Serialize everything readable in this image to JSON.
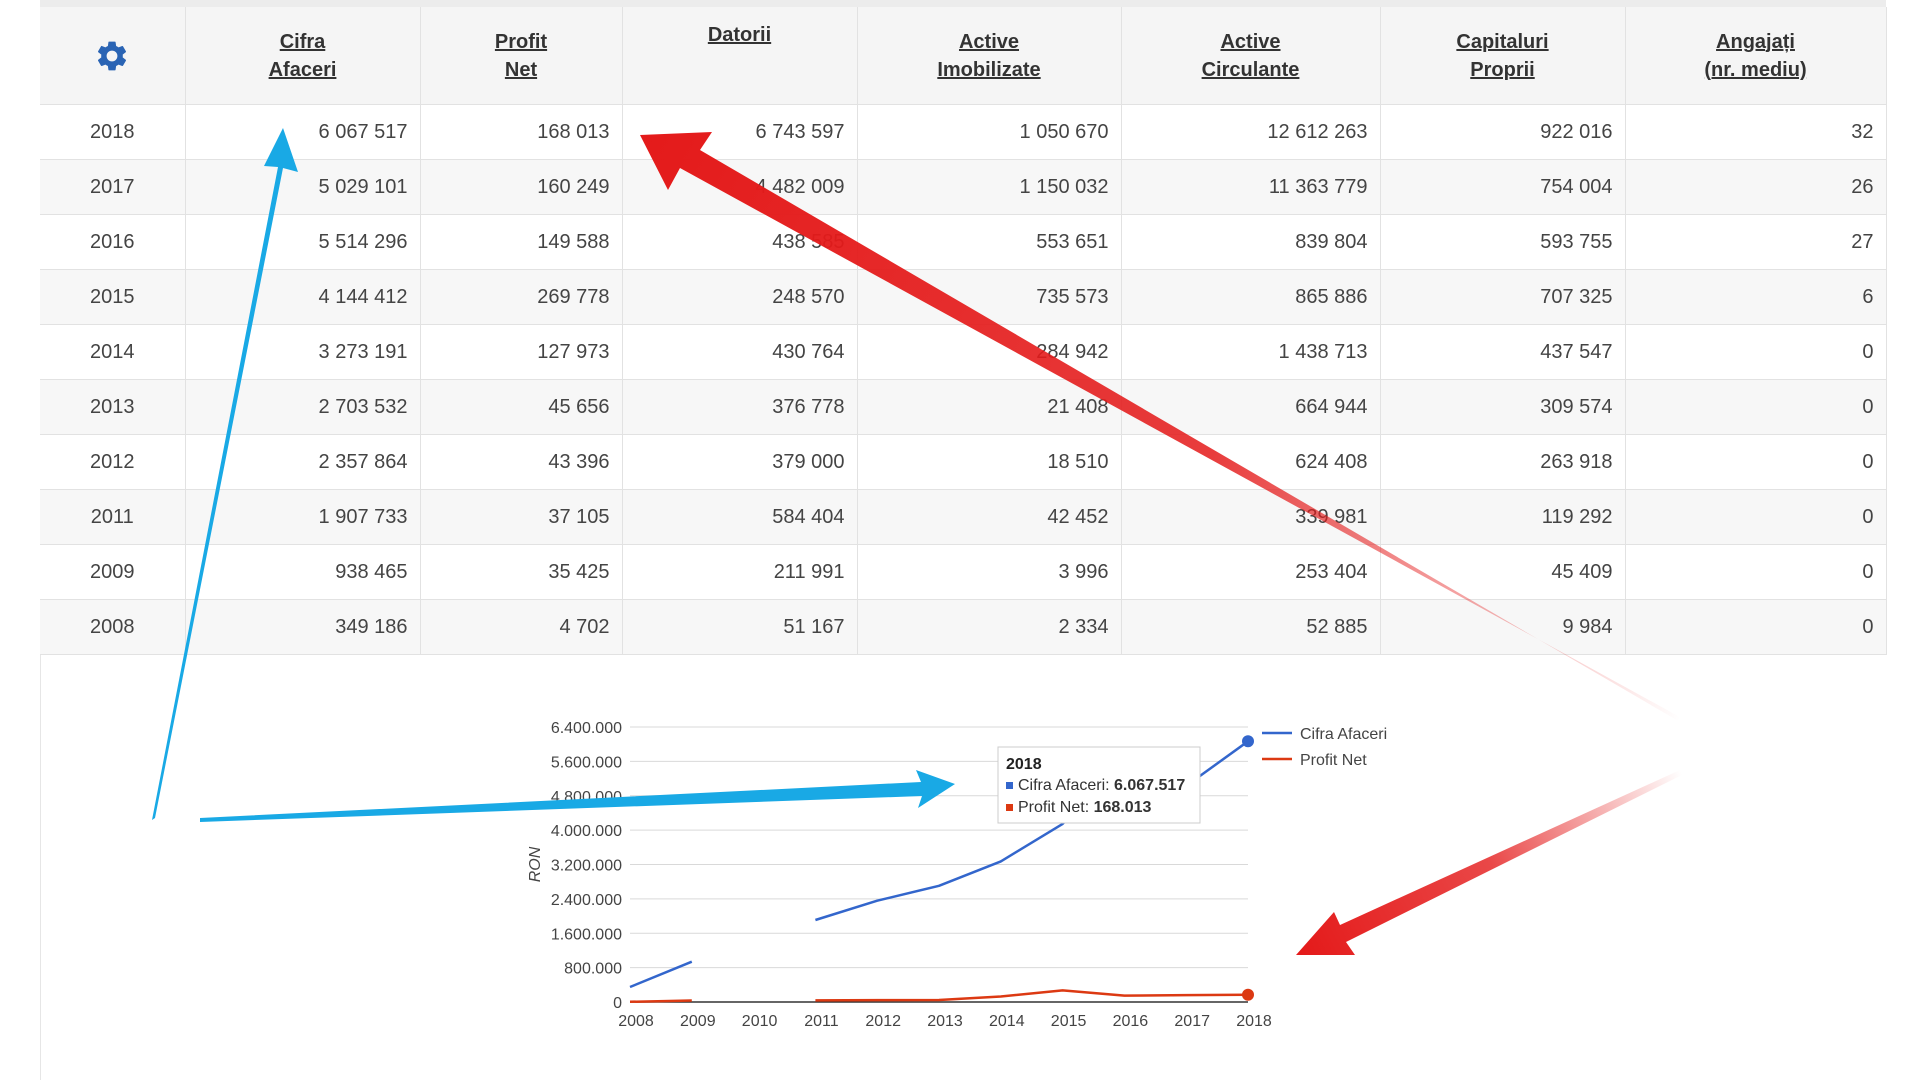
{
  "table": {
    "headers": [
      {
        "line1": "Cifra",
        "line2": "Afaceri"
      },
      {
        "line1": "Profit",
        "line2": "Net"
      },
      {
        "line1": "Datorii",
        "line2": ""
      },
      {
        "line1": "Active",
        "line2": "Imobilizate"
      },
      {
        "line1": "Active",
        "line2": "Circulante"
      },
      {
        "line1": "Capitaluri",
        "line2": "Proprii"
      },
      {
        "line1": "Angajați",
        "line2": "(nr. mediu)"
      }
    ],
    "rows": [
      {
        "year": "2018",
        "cells": [
          "6 067 517",
          "168 013",
          "6 743 597",
          "1 050 670",
          "12 612 263",
          "922 016",
          "32"
        ]
      },
      {
        "year": "2017",
        "cells": [
          "5 029 101",
          "160 249",
          "4 482 009",
          "1 150 032",
          "11 363 779",
          "754 004",
          "26"
        ]
      },
      {
        "year": "2016",
        "cells": [
          "5 514 296",
          "149 588",
          "438 585",
          "553 651",
          "839 804",
          "593 755",
          "27"
        ]
      },
      {
        "year": "2015",
        "cells": [
          "4 144 412",
          "269 778",
          "248 570",
          "735 573",
          "865 886",
          "707 325",
          "6"
        ]
      },
      {
        "year": "2014",
        "cells": [
          "3 273 191",
          "127 973",
          "430 764",
          "284 942",
          "1 438 713",
          "437 547",
          "0"
        ]
      },
      {
        "year": "2013",
        "cells": [
          "2 703 532",
          "45 656",
          "376 778",
          "21 408",
          "664 944",
          "309 574",
          "0"
        ]
      },
      {
        "year": "2012",
        "cells": [
          "2 357 864",
          "43 396",
          "379 000",
          "18 510",
          "624 408",
          "263 918",
          "0"
        ]
      },
      {
        "year": "2011",
        "cells": [
          "1 907 733",
          "37 105",
          "584 404",
          "42 452",
          "339 981",
          "119 292",
          "0"
        ]
      },
      {
        "year": "2009",
        "cells": [
          "938 465",
          "35 425",
          "211 991",
          "3 996",
          "253 404",
          "45 409",
          "0"
        ]
      },
      {
        "year": "2008",
        "cells": [
          "349 186",
          "4 702",
          "51 167",
          "2 334",
          "52 885",
          "9 984",
          "0"
        ]
      }
    ]
  },
  "icons": {
    "settings": "gear-icon"
  },
  "colors": {
    "gear": "#2a64b4",
    "cifra": "#3366cc",
    "profit": "#dc3912",
    "arrow_blue": "#19a9e5",
    "arrow_red": "#e02020"
  },
  "chart_data": {
    "type": "line",
    "x": [
      "2008",
      "2009",
      "2010",
      "2011",
      "2012",
      "2013",
      "2014",
      "2015",
      "2016",
      "2017",
      "2018"
    ],
    "x_ticks": [
      "2008",
      "2009",
      "2010",
      "2011",
      "2012",
      "2013",
      "2014",
      "2015",
      "2016",
      "2017",
      "2018"
    ],
    "y_ticks": [
      "0",
      "800.000",
      "1.600.000",
      "2.400.000",
      "3.200.000",
      "4.000.000",
      "4.800.000",
      "5.600.000",
      "6.400.000"
    ],
    "ylim": [
      0,
      6400000
    ],
    "ylabel": "RON",
    "grid": true,
    "legend_position": "right",
    "series": [
      {
        "name": "Cifra Afaceri",
        "color": "#3366cc",
        "values": [
          349186,
          938465,
          null,
          1907733,
          2357864,
          2703532,
          3273191,
          4144412,
          5514296,
          5029101,
          6067517
        ]
      },
      {
        "name": "Profit Net",
        "color": "#dc3912",
        "values": [
          4702,
          35425,
          null,
          37105,
          43396,
          45656,
          127973,
          269778,
          149588,
          160249,
          168013
        ]
      }
    ],
    "tooltip": {
      "title": "2018",
      "line1_label": "Cifra Afaceri: ",
      "line1_value": "6.067.517",
      "line2_label": "Profit Net: ",
      "line2_value": "168.013"
    }
  }
}
